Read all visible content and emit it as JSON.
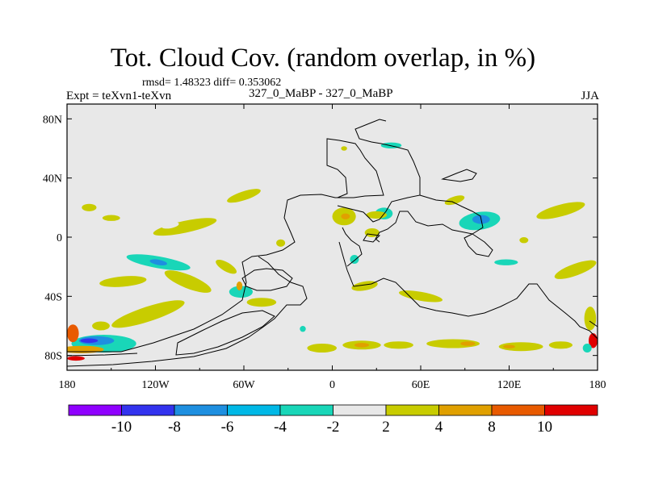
{
  "title": "Tot. Cloud Cov. (random overlap, in %)",
  "stats": "rmsd= 1.48323 diff= 0.353062",
  "experiment": "Expt = teXvn1-teXvn",
  "case": "327_0_MaBP - 327_0_MaBP",
  "season": "JJA",
  "map": {
    "lon_range": [
      -180,
      180
    ],
    "lat_range": [
      -90,
      90
    ],
    "background_color": "#e8e8e8",
    "lon_ticks": [
      {
        "value": -180,
        "label": "180"
      },
      {
        "value": -120,
        "label": "120W"
      },
      {
        "value": -60,
        "label": "60W"
      },
      {
        "value": 0,
        "label": "0"
      },
      {
        "value": 60,
        "label": "60E"
      },
      {
        "value": 120,
        "label": "120E"
      },
      {
        "value": 180,
        "label": "180"
      }
    ],
    "lat_ticks": [
      {
        "value": 80,
        "label": "80N"
      },
      {
        "value": 40,
        "label": "40N"
      },
      {
        "value": 0,
        "label": "0"
      },
      {
        "value": -40,
        "label": "40S"
      },
      {
        "value": -80,
        "label": "80S"
      }
    ],
    "anomaly_patches": [
      {
        "lon": -100,
        "lat": 7,
        "rx": 22,
        "ry": 4,
        "level": 3,
        "rot": -12
      },
      {
        "lon": -110,
        "lat": 8,
        "rx": 6,
        "ry": 2,
        "level": 4,
        "rot": -10
      },
      {
        "lon": -60,
        "lat": 28,
        "rx": 12,
        "ry": 3,
        "level": 3,
        "rot": -18
      },
      {
        "lon": -165,
        "lat": 20,
        "rx": 5,
        "ry": 2.5,
        "level": 3,
        "rot": 0
      },
      {
        "lon": -150,
        "lat": 13,
        "rx": 6,
        "ry": 2,
        "level": 3,
        "rot": 0
      },
      {
        "lon": -118,
        "lat": -17,
        "rx": 22,
        "ry": 4,
        "level": -3,
        "rot": 10
      },
      {
        "lon": -118,
        "lat": -17,
        "rx": 6,
        "ry": 1.8,
        "level": -5,
        "rot": 10
      },
      {
        "lon": -98,
        "lat": -30,
        "rx": 17,
        "ry": 4.5,
        "level": 3,
        "rot": 22
      },
      {
        "lon": -142,
        "lat": -30,
        "rx": 16,
        "ry": 3.5,
        "level": 3,
        "rot": -5
      },
      {
        "lon": -72,
        "lat": -20,
        "rx": 8,
        "ry": 3,
        "level": 3,
        "rot": 30
      },
      {
        "lon": -125,
        "lat": -52,
        "rx": 26,
        "ry": 5,
        "level": 3,
        "rot": -18
      },
      {
        "lon": -157,
        "lat": -60,
        "rx": 6,
        "ry": 3,
        "level": 3,
        "rot": 0
      },
      {
        "lon": -155,
        "lat": -72,
        "rx": 22,
        "ry": 6,
        "level": -3,
        "rot": 0
      },
      {
        "lon": -160,
        "lat": -70,
        "rx": 12,
        "ry": 3,
        "level": -5,
        "rot": 0
      },
      {
        "lon": -165,
        "lat": -70,
        "rx": 6,
        "ry": 1.5,
        "level": -7,
        "rot": 0
      },
      {
        "lon": -170,
        "lat": -76,
        "rx": 15,
        "ry": 2.5,
        "level": 5,
        "rot": 0
      },
      {
        "lon": -176,
        "lat": -65,
        "rx": 4,
        "ry": 6,
        "level": 7,
        "rot": 0
      },
      {
        "lon": -174,
        "lat": -82,
        "rx": 6,
        "ry": 1.5,
        "level": 9,
        "rot": 0
      },
      {
        "lon": -62,
        "lat": -37,
        "rx": 8,
        "ry": 4,
        "level": -3,
        "rot": 0
      },
      {
        "lon": -63,
        "lat": -33,
        "rx": 2,
        "ry": 3,
        "level": 5,
        "rot": 0
      },
      {
        "lon": -48,
        "lat": -44,
        "rx": 10,
        "ry": 3,
        "level": 3,
        "rot": 0
      },
      {
        "lon": -35,
        "lat": -4,
        "rx": 3,
        "ry": 2.5,
        "level": 3,
        "rot": 0
      },
      {
        "lon": 8,
        "lat": 14,
        "rx": 8,
        "ry": 6,
        "level": 3,
        "rot": 0
      },
      {
        "lon": 9,
        "lat": 14,
        "rx": 3,
        "ry": 2,
        "level": 5,
        "rot": 0
      },
      {
        "lon": 35,
        "lat": 16,
        "rx": 6,
        "ry": 4,
        "level": -3,
        "rot": 0
      },
      {
        "lon": 30,
        "lat": 15,
        "rx": 7,
        "ry": 2.5,
        "level": 3,
        "rot": 0
      },
      {
        "lon": 27,
        "lat": 3,
        "rx": 5,
        "ry": 3,
        "level": 3,
        "rot": 0
      },
      {
        "lon": 15,
        "lat": -15,
        "rx": 3,
        "ry": 3,
        "level": -3,
        "rot": 0
      },
      {
        "lon": 22,
        "lat": -33,
        "rx": 9,
        "ry": 3,
        "level": 3,
        "rot": -10
      },
      {
        "lon": 60,
        "lat": -40,
        "rx": 15,
        "ry": 3,
        "level": 3,
        "rot": 10
      },
      {
        "lon": 100,
        "lat": 11,
        "rx": 14,
        "ry": 6,
        "level": -3,
        "rot": -8
      },
      {
        "lon": 101,
        "lat": 12,
        "rx": 6,
        "ry": 3,
        "level": -5,
        "rot": 0
      },
      {
        "lon": 83,
        "lat": 25,
        "rx": 7,
        "ry": 2.5,
        "level": 3,
        "rot": -18
      },
      {
        "lon": 155,
        "lat": 18,
        "rx": 17,
        "ry": 4,
        "level": 3,
        "rot": -15
      },
      {
        "lon": 118,
        "lat": -17,
        "rx": 8,
        "ry": 2,
        "level": -3,
        "rot": 0
      },
      {
        "lon": 165,
        "lat": -22,
        "rx": 15,
        "ry": 4,
        "level": 3,
        "rot": -20
      },
      {
        "lon": 175,
        "lat": -55,
        "rx": 4,
        "ry": 8,
        "level": 3,
        "rot": 0
      },
      {
        "lon": 177,
        "lat": -70,
        "rx": 3,
        "ry": 5,
        "level": 9,
        "rot": 0
      },
      {
        "lon": 173,
        "lat": -75,
        "rx": 3,
        "ry": 3,
        "level": -3,
        "rot": 0
      },
      {
        "lon": 20,
        "lat": -73,
        "rx": 13,
        "ry": 3,
        "level": 3,
        "rot": 0
      },
      {
        "lon": 20,
        "lat": -73,
        "rx": 5,
        "ry": 1.5,
        "level": 5,
        "rot": 0
      },
      {
        "lon": 45,
        "lat": -73,
        "rx": 10,
        "ry": 2.5,
        "level": 3,
        "rot": 0
      },
      {
        "lon": 82,
        "lat": -72,
        "rx": 18,
        "ry": 3,
        "level": 3,
        "rot": 0
      },
      {
        "lon": 92,
        "lat": -72,
        "rx": 5,
        "ry": 1.5,
        "level": 5,
        "rot": 0
      },
      {
        "lon": 128,
        "lat": -74,
        "rx": 15,
        "ry": 3,
        "level": 3,
        "rot": 0
      },
      {
        "lon": 120,
        "lat": -74,
        "rx": 4,
        "ry": 1.2,
        "level": 5,
        "rot": 0
      },
      {
        "lon": 155,
        "lat": -73,
        "rx": 8,
        "ry": 2.5,
        "level": 3,
        "rot": 0
      },
      {
        "lon": -7,
        "lat": -75,
        "rx": 10,
        "ry": 3,
        "level": 3,
        "rot": 0
      },
      {
        "lon": 130,
        "lat": -2,
        "rx": 3,
        "ry": 2,
        "level": 3,
        "rot": 0
      },
      {
        "lon": -20,
        "lat": -62,
        "rx": 2,
        "ry": 2,
        "level": -3,
        "rot": 0
      },
      {
        "lon": 8,
        "lat": 60,
        "rx": 2,
        "ry": 1.5,
        "level": 3,
        "rot": 0
      },
      {
        "lon": 40,
        "lat": 62,
        "rx": 7,
        "ry": 2,
        "level": -3,
        "rot": 0
      }
    ]
  },
  "colorbar": {
    "colors": [
      "#8f00ff",
      "#3333ee",
      "#1e8fe0",
      "#00b8e6",
      "#19d6b8",
      "#e8e8e8",
      "#c8cc00",
      "#e0a000",
      "#e85a00",
      "#e00000"
    ],
    "labels": [
      "-10",
      "-8",
      "-6",
      "-4",
      "-2",
      "2",
      "4",
      "8",
      "10"
    ]
  }
}
